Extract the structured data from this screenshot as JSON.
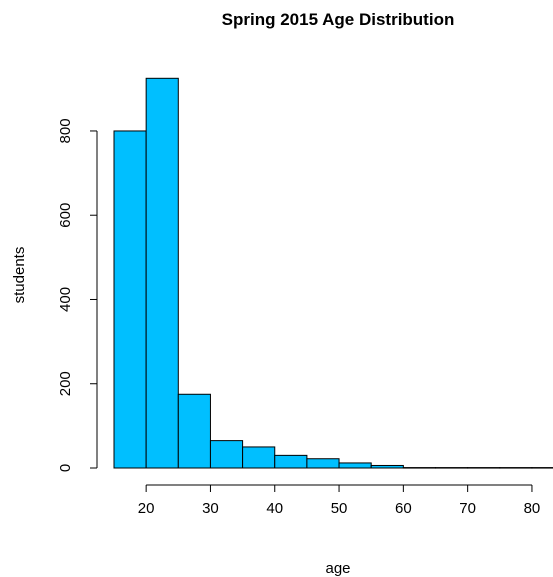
{
  "chart_data": {
    "type": "bar",
    "title": "Spring 2015 Age Distribution",
    "xlabel": "age",
    "ylabel": "students",
    "bins": [
      {
        "start": 15,
        "end": 20,
        "count": 800
      },
      {
        "start": 20,
        "end": 25,
        "count": 925
      },
      {
        "start": 25,
        "end": 30,
        "count": 175
      },
      {
        "start": 30,
        "end": 35,
        "count": 65
      },
      {
        "start": 35,
        "end": 40,
        "count": 50
      },
      {
        "start": 40,
        "end": 45,
        "count": 30
      },
      {
        "start": 45,
        "end": 50,
        "count": 22
      },
      {
        "start": 50,
        "end": 55,
        "count": 12
      },
      {
        "start": 55,
        "end": 60,
        "count": 6
      },
      {
        "start": 60,
        "end": 65,
        "count": 1
      },
      {
        "start": 65,
        "end": 70,
        "count": 1
      },
      {
        "start": 70,
        "end": 75,
        "count": 1
      },
      {
        "start": 75,
        "end": 80,
        "count": 1
      },
      {
        "start": 80,
        "end": 85,
        "count": 1
      }
    ],
    "xticks": [
      20,
      30,
      40,
      50,
      60,
      70,
      80
    ],
    "yticks": [
      0,
      200,
      400,
      600,
      800
    ],
    "xlim": [
      15,
      85
    ],
    "ylim": [
      0,
      925
    ],
    "bar_color": "#00BFFF",
    "grid": false,
    "legend": "none"
  }
}
